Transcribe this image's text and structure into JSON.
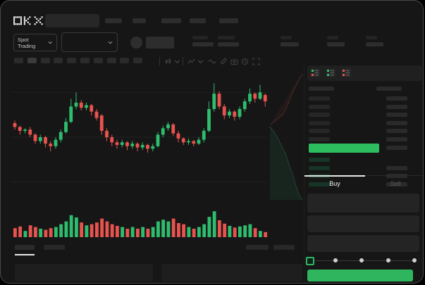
{
  "app": {
    "title": "OKX Spot Trading",
    "colors": {
      "candle_green": "#2ebd6e",
      "candle_red": "#e8534e",
      "accent_green": "#2eb55d",
      "last_price_green": "#2ebd5e",
      "background": "#161616"
    }
  },
  "header": {
    "logo": "OKX",
    "search_placeholder": "",
    "nav_placeholder_count": 5
  },
  "subheader": {
    "market_selector_label": "Spot Trading",
    "pair_selector_value": "",
    "price_placeholder": "",
    "stat_placeholder_count": 5
  },
  "chart_toolbar": {
    "timeframe_placeholder_count": 10,
    "active_timeframe_index": 1,
    "icons": [
      "interval-chevron-icon",
      "chart-type-icon",
      "chart-type-chevron-icon",
      "wave-indicator-icon",
      "draw-pencil-icon",
      "camera-icon",
      "history-icon",
      "fullscreen-icon"
    ]
  },
  "chart_data": {
    "type": "candlestick+volume+depth",
    "title": "",
    "xlabel": "",
    "ylabel": "",
    "grid": true,
    "price_scale": [
      0,
      100
    ],
    "candles": [
      {
        "o": 61,
        "c": 58,
        "h": 63,
        "l": 56
      },
      {
        "o": 58,
        "c": 55,
        "h": 59,
        "l": 52
      },
      {
        "o": 55,
        "c": 56,
        "h": 57,
        "l": 53
      },
      {
        "o": 56,
        "c": 52,
        "h": 58,
        "l": 50
      },
      {
        "o": 52,
        "c": 47,
        "h": 53,
        "l": 45
      },
      {
        "o": 47,
        "c": 50,
        "h": 52,
        "l": 45
      },
      {
        "o": 50,
        "c": 45,
        "h": 51,
        "l": 42
      },
      {
        "o": 45,
        "c": 43,
        "h": 47,
        "l": 39
      },
      {
        "o": 43,
        "c": 48,
        "h": 50,
        "l": 41
      },
      {
        "o": 48,
        "c": 54,
        "h": 56,
        "l": 46
      },
      {
        "o": 54,
        "c": 62,
        "h": 65,
        "l": 53
      },
      {
        "o": 62,
        "c": 74,
        "h": 80,
        "l": 61
      },
      {
        "o": 74,
        "c": 77,
        "h": 85,
        "l": 72
      },
      {
        "o": 77,
        "c": 73,
        "h": 79,
        "l": 71
      },
      {
        "o": 73,
        "c": 75,
        "h": 77,
        "l": 71
      },
      {
        "o": 75,
        "c": 70,
        "h": 76,
        "l": 67
      },
      {
        "o": 70,
        "c": 65,
        "h": 72,
        "l": 63
      },
      {
        "o": 67,
        "c": 55,
        "h": 68,
        "l": 52
      },
      {
        "o": 55,
        "c": 50,
        "h": 57,
        "l": 47
      },
      {
        "o": 50,
        "c": 46,
        "h": 52,
        "l": 43
      },
      {
        "o": 46,
        "c": 44,
        "h": 48,
        "l": 41
      },
      {
        "o": 44,
        "c": 46,
        "h": 48,
        "l": 42
      },
      {
        "o": 46,
        "c": 43,
        "h": 47,
        "l": 40
      },
      {
        "o": 43,
        "c": 45,
        "h": 47,
        "l": 41
      },
      {
        "o": 45,
        "c": 42,
        "h": 46,
        "l": 39
      },
      {
        "o": 42,
        "c": 44,
        "h": 46,
        "l": 40
      },
      {
        "o": 44,
        "c": 41,
        "h": 45,
        "l": 38
      },
      {
        "o": 41,
        "c": 43,
        "h": 45,
        "l": 39
      },
      {
        "o": 43,
        "c": 52,
        "h": 54,
        "l": 42
      },
      {
        "o": 52,
        "c": 57,
        "h": 59,
        "l": 50
      },
      {
        "o": 57,
        "c": 60,
        "h": 62,
        "l": 55
      },
      {
        "o": 60,
        "c": 53,
        "h": 61,
        "l": 51
      },
      {
        "o": 53,
        "c": 49,
        "h": 55,
        "l": 46
      },
      {
        "o": 49,
        "c": 46,
        "h": 50,
        "l": 44
      },
      {
        "o": 46,
        "c": 47,
        "h": 49,
        "l": 44
      },
      {
        "o": 47,
        "c": 45,
        "h": 48,
        "l": 43
      },
      {
        "o": 45,
        "c": 48,
        "h": 50,
        "l": 44
      },
      {
        "o": 48,
        "c": 55,
        "h": 57,
        "l": 46
      },
      {
        "o": 55,
        "c": 72,
        "h": 78,
        "l": 54
      },
      {
        "o": 72,
        "c": 84,
        "h": 92,
        "l": 70
      },
      {
        "o": 84,
        "c": 74,
        "h": 86,
        "l": 72
      },
      {
        "o": 74,
        "c": 67,
        "h": 76,
        "l": 64
      },
      {
        "o": 67,
        "c": 70,
        "h": 72,
        "l": 65
      },
      {
        "o": 70,
        "c": 66,
        "h": 71,
        "l": 63
      },
      {
        "o": 66,
        "c": 72,
        "h": 74,
        "l": 64
      },
      {
        "o": 72,
        "c": 78,
        "h": 80,
        "l": 70
      },
      {
        "o": 78,
        "c": 84,
        "h": 88,
        "l": 76
      },
      {
        "o": 84,
        "c": 80,
        "h": 85,
        "l": 77
      },
      {
        "o": 80,
        "c": 85,
        "h": 91,
        "l": 79
      },
      {
        "o": 83,
        "c": 78,
        "h": 84,
        "l": 74
      }
    ],
    "volume": [
      32,
      38,
      22,
      42,
      36,
      30,
      26,
      32,
      36,
      46,
      56,
      78,
      70,
      52,
      42,
      46,
      52,
      66,
      56,
      46,
      40,
      36,
      30,
      36,
      30,
      36,
      30,
      36,
      56,
      62,
      56,
      66,
      50,
      46,
      36,
      30,
      36,
      46,
      72,
      92,
      60,
      48,
      40,
      34,
      38,
      42,
      46,
      32,
      22,
      18
    ],
    "depth": {
      "asks_line": [
        [
          46,
          4
        ],
        [
          42,
          10
        ],
        [
          38,
          18
        ],
        [
          33,
          28
        ],
        [
          28,
          40
        ],
        [
          24,
          50
        ],
        [
          19,
          60
        ],
        [
          10,
          68
        ],
        [
          2,
          74
        ],
        [
          0,
          76
        ]
      ],
      "bids_line": [
        [
          0,
          78
        ],
        [
          5,
          84
        ],
        [
          11,
          94
        ],
        [
          17,
          106
        ],
        [
          23,
          118
        ],
        [
          27,
          132
        ],
        [
          33,
          148
        ],
        [
          37,
          162
        ],
        [
          41,
          174
        ],
        [
          46,
          182
        ]
      ]
    }
  },
  "orderbook": {
    "view_modes": [
      "book-both-icon",
      "book-bids-icon",
      "book-asks-icon"
    ],
    "header_placeholder": true,
    "ask_rows": 6,
    "last_price_highlight": true,
    "bid_rows": 4
  },
  "trade_panel": {
    "tabs": [
      {
        "label": "Buy",
        "active": true
      },
      {
        "label": "Sell",
        "active": false
      }
    ],
    "field_count": 3,
    "slider_stop_count": 5,
    "slider_value_index": 0,
    "submit_label": ""
  },
  "bottom_bar": {
    "left_tab_count": 2,
    "active_left_tab_index": 0,
    "right_placeholder_count": 2,
    "panel_count": 2
  }
}
